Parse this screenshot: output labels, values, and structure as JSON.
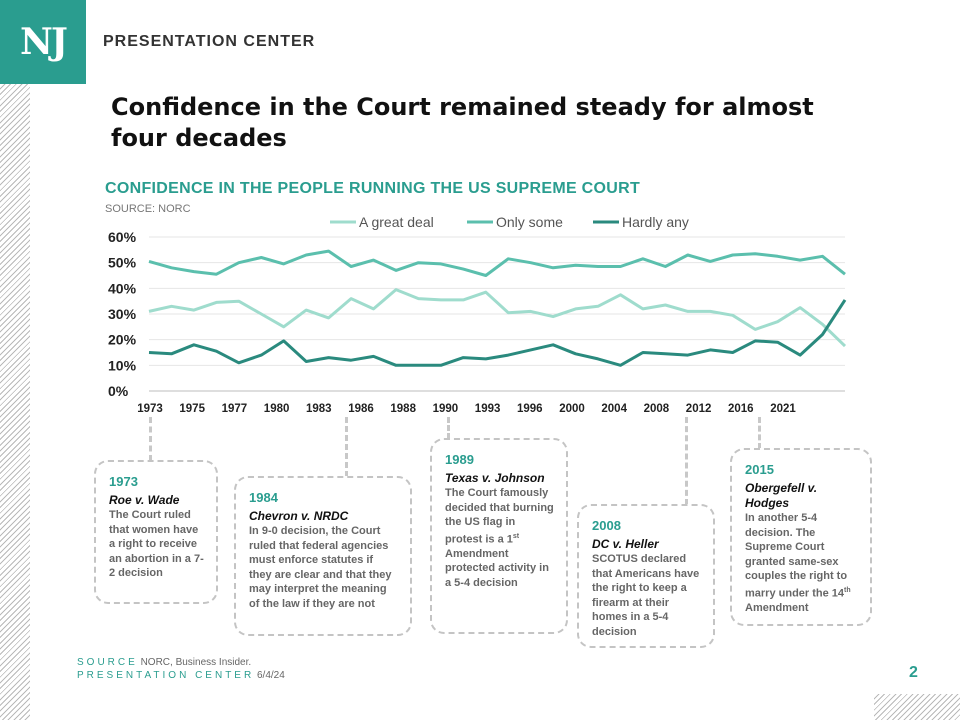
{
  "header": {
    "logo": "NJ",
    "label": "PRESENTATION CENTER"
  },
  "slide_title": "Confidence in the Court remained steady for almost four decades",
  "chart_data": {
    "type": "line",
    "title": "CONFIDENCE IN THE PEOPLE RUNNING THE US SUPREME COURT",
    "subtitle": "SOURCE: NORC",
    "x_tick_labels": [
      "1973",
      "1975",
      "1977",
      "1980",
      "1983",
      "1986",
      "1988",
      "1990",
      "1993",
      "1996",
      "2000",
      "2004",
      "2008",
      "2012",
      "2016",
      "2021"
    ],
    "y_ticks": [
      "0%",
      "10%",
      "20%",
      "30%",
      "40%",
      "50%",
      "60%"
    ],
    "ylim": [
      0,
      60
    ],
    "legend_position": "top",
    "grid": true,
    "series": [
      {
        "name": "A great deal",
        "color": "#9fdccd",
        "values": [
          31,
          33,
          31.5,
          34.5,
          35,
          30,
          25,
          31.5,
          28.5,
          36,
          32,
          39.5,
          36,
          35.5,
          35.5,
          38.5,
          30.5,
          31,
          29,
          32,
          33,
          37.5,
          32,
          33.5,
          31,
          31,
          29.5,
          24,
          27,
          32.5,
          26,
          17.5
        ]
      },
      {
        "name": "Only some",
        "color": "#5bbfad",
        "values": [
          50.5,
          48,
          46.5,
          45.5,
          50,
          52,
          49.5,
          53,
          54.5,
          48.5,
          51,
          47,
          50,
          49.5,
          47.5,
          45,
          51.5,
          50,
          48,
          49,
          48.5,
          48.5,
          51.5,
          48.5,
          53,
          50.5,
          53,
          53.5,
          52.5,
          51,
          52.5,
          45.5
        ]
      },
      {
        "name": "Hardly any",
        "color": "#2a8a7e",
        "values": [
          15,
          14.5,
          18,
          15.5,
          11,
          14,
          19.5,
          11.5,
          13,
          12,
          13.5,
          10,
          10,
          10,
          13,
          12.5,
          14,
          16,
          18,
          14.5,
          12.5,
          10,
          15,
          14.5,
          14,
          16,
          15,
          19.5,
          19,
          14,
          22,
          35.5
        ]
      }
    ]
  },
  "annotations": [
    {
      "year": "1973",
      "case": "Roe v. Wade",
      "description": "The Court ruled that women have a right to receive an abortion in a 7-2 decision"
    },
    {
      "year": "1984",
      "case": "Chevron v. NRDC",
      "description": "In 9-0 decision, the Court ruled that federal agencies must enforce statutes if they are clear and that they may interpret the meaning of the law if they are not"
    },
    {
      "year": "1989",
      "case": "Texas v. Johnson",
      "description_pre": "The Court famously decided that burning the US flag in protest is a 1",
      "description_sup": "st",
      "description_post": " Amendment protected activity in a 5-4 decision"
    },
    {
      "year": "2008",
      "case": "DC v. Heller",
      "description": "SCOTUS declared that Americans have the right to keep a firearm at their homes in a 5-4 decision"
    },
    {
      "year": "2015",
      "case": "Obergefell v. Hodges",
      "description_pre": "In another 5-4 decision. The Supreme Court granted same-sex couples the right to marry under the 14",
      "description_sup": "th",
      "description_post": " Amendment"
    }
  ],
  "footer": {
    "source_label": "SOURCE",
    "source_text": "NORC, Business Insider.",
    "pres_label": "PRESENTATION CENTER",
    "date": "6/4/24",
    "page_number": "2"
  }
}
